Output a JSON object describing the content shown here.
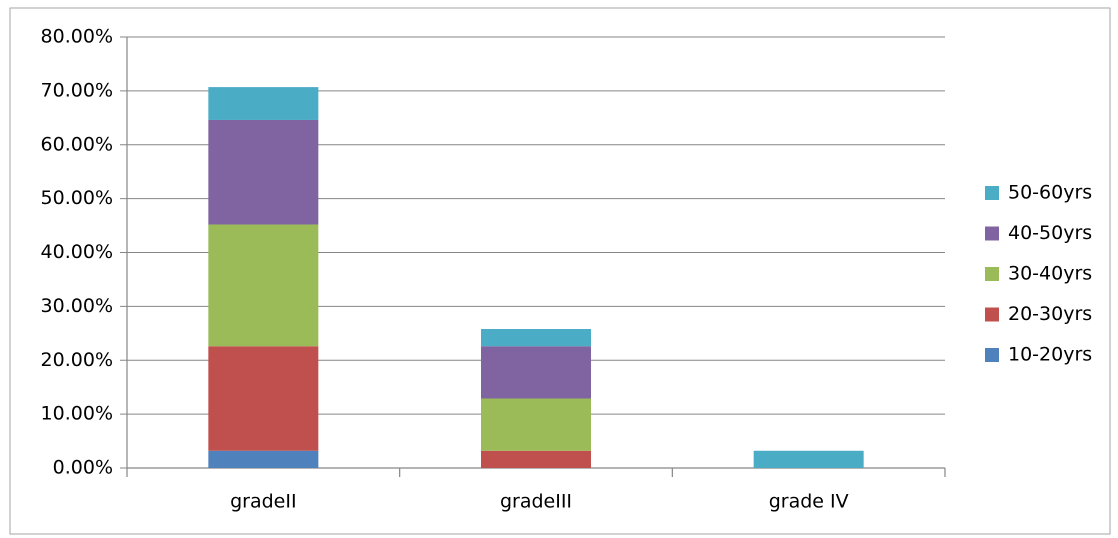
{
  "chart_data": {
    "type": "stacked-bar",
    "categories": [
      "gradeII",
      "gradeIII",
      "grade IV"
    ],
    "series": [
      {
        "name": "10-20yrs",
        "color": "#4f81bd",
        "values": [
          3.2,
          0,
          0
        ]
      },
      {
        "name": "20-30yrs",
        "color": "#c0504d",
        "values": [
          19.4,
          3.2,
          0
        ]
      },
      {
        "name": "30-40yrs",
        "color": "#9bbb59",
        "values": [
          22.6,
          9.7,
          0
        ]
      },
      {
        "name": "40-50yrs",
        "color": "#8064a2",
        "values": [
          19.4,
          9.7,
          0
        ]
      },
      {
        "name": "50-60yrs",
        "color": "#4bacc6",
        "values": [
          6.1,
          3.2,
          3.2
        ]
      }
    ],
    "ylim": [
      0,
      80
    ],
    "yticks": [
      {
        "value": 0,
        "label": "0.00%"
      },
      {
        "value": 10,
        "label": "10.00%"
      },
      {
        "value": 20,
        "label": "20.00%"
      },
      {
        "value": 30,
        "label": "30.00%"
      },
      {
        "value": 40,
        "label": "40.00%"
      },
      {
        "value": 50,
        "label": "50.00%"
      },
      {
        "value": 60,
        "label": "60.00%"
      },
      {
        "value": 70,
        "label": "70.00%"
      },
      {
        "value": 80,
        "label": "80.00%"
      }
    ],
    "grid": true,
    "legend": "right"
  }
}
